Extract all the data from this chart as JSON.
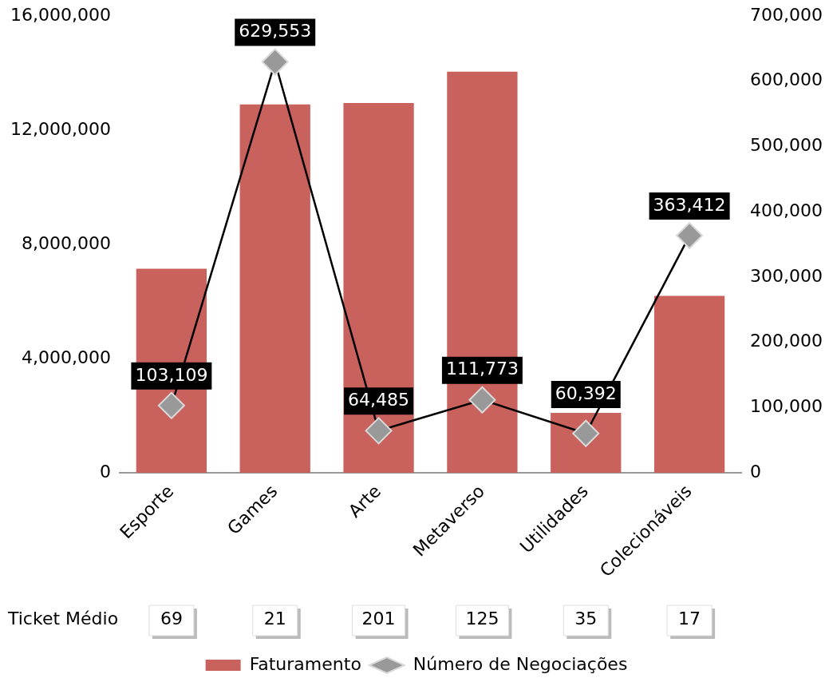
{
  "chart_data": {
    "type": "bar",
    "categories": [
      "Esporte",
      "Games",
      "Arte",
      "Metaverso",
      "Utilidades",
      "Colecionáveis"
    ],
    "series": [
      {
        "name": "Faturamento",
        "color": "#c9615c",
        "values": [
          7150000,
          12900000,
          12950000,
          14050000,
          2100000,
          6200000
        ]
      },
      {
        "name": "Número de Negociações",
        "type": "line",
        "axis": "y2",
        "color": "#000000",
        "marker": "diamond",
        "values": [
          103109,
          629553,
          64485,
          111773,
          60392,
          363412
        ],
        "value_labels": [
          "103,109",
          "629,553",
          "64,485",
          "111,773",
          "60,392",
          "363,412"
        ]
      }
    ],
    "ylim": [
      0,
      16000000
    ],
    "yticks": [
      {
        "value": 0,
        "label": "0"
      },
      {
        "value": 4000000,
        "label": "4,000,000"
      },
      {
        "value": 8000000,
        "label": "8,000,000"
      },
      {
        "value": 12000000,
        "label": "12,000,000"
      },
      {
        "value": 16000000,
        "label": "16,000,000"
      }
    ],
    "y2lim": [
      0,
      700000
    ],
    "y2ticks": [
      {
        "value": 0,
        "label": "0"
      },
      {
        "value": 100000,
        "label": "100,000"
      },
      {
        "value": 200000,
        "label": "200,000"
      },
      {
        "value": 300000,
        "label": "300,000"
      },
      {
        "value": 400000,
        "label": "400,000"
      },
      {
        "value": 500000,
        "label": "500,000"
      },
      {
        "value": 600000,
        "label": "600,000"
      },
      {
        "value": 700000,
        "label": "700,000"
      }
    ],
    "annotations": [
      "Ticket Médio",
      "69",
      "21",
      "201",
      "125",
      "35",
      "17"
    ],
    "grid": false,
    "legend": "bottom"
  }
}
